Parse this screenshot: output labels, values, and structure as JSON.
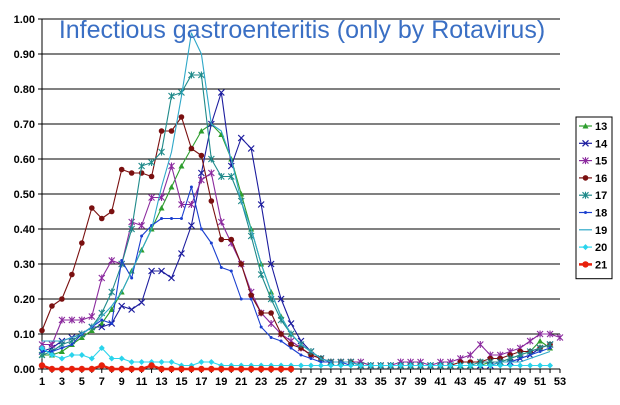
{
  "chart_data": {
    "type": "line",
    "title": "Infectious gastroenteritis (only by Rotavirus)",
    "xlabel": "",
    "ylabel": "",
    "xlim": [
      1,
      53
    ],
    "ylim": [
      0,
      1
    ],
    "x_ticks": [
      1,
      3,
      5,
      7,
      9,
      11,
      13,
      15,
      17,
      19,
      21,
      23,
      25,
      27,
      29,
      31,
      33,
      35,
      37,
      39,
      41,
      43,
      45,
      47,
      49,
      51,
      53
    ],
    "y_ticks": [
      "0.00",
      "0.10",
      "0.20",
      "0.30",
      "0.40",
      "0.50",
      "0.60",
      "0.70",
      "0.80",
      "0.90",
      "1.00"
    ],
    "grid": "horizontal",
    "legend_position": "right",
    "x": [
      1,
      2,
      3,
      4,
      5,
      6,
      7,
      8,
      9,
      10,
      11,
      12,
      13,
      14,
      15,
      16,
      17,
      18,
      19,
      20,
      21,
      22,
      23,
      24,
      25,
      26,
      27,
      28,
      29,
      30,
      31,
      32,
      33,
      34,
      35,
      36,
      37,
      38,
      39,
      40,
      41,
      42,
      43,
      44,
      45,
      46,
      47,
      48,
      49,
      50,
      51,
      52,
      53
    ],
    "series": [
      {
        "name": "13",
        "color": "#2e9e2e",
        "marker": "triangle",
        "values": [
          0.04,
          0.04,
          0.05,
          0.07,
          0.09,
          0.11,
          0.13,
          0.17,
          0.22,
          0.28,
          0.34,
          0.4,
          0.46,
          0.52,
          0.58,
          0.63,
          0.68,
          0.7,
          0.67,
          0.6,
          0.5,
          0.4,
          0.3,
          0.22,
          0.15,
          0.1,
          0.07,
          0.05,
          0.03,
          0.02,
          0.02,
          0.02,
          0.02,
          0.01,
          0.01,
          0.01,
          0.01,
          0.01,
          0.01,
          0.01,
          0.01,
          0.01,
          0.01,
          0.01,
          0.01,
          0.02,
          0.02,
          0.03,
          0.04,
          0.05,
          0.08,
          0.06,
          null
        ]
      },
      {
        "name": "14",
        "color": "#1c1c9e",
        "marker": "x",
        "values": [
          0.05,
          0.06,
          0.08,
          0.09,
          0.1,
          0.12,
          0.12,
          0.13,
          0.18,
          0.17,
          0.19,
          0.28,
          0.28,
          0.26,
          0.33,
          0.41,
          0.56,
          0.7,
          0.79,
          0.58,
          0.66,
          0.63,
          0.47,
          0.3,
          0.2,
          0.13,
          0.08,
          0.05,
          0.03,
          0.02,
          0.02,
          0.02,
          0.01,
          0.01,
          0.01,
          0.01,
          0.01,
          0.01,
          0.01,
          0.01,
          0.01,
          0.01,
          0.01,
          0.01,
          0.01,
          0.01,
          0.02,
          0.02,
          0.03,
          0.04,
          0.06,
          0.07,
          null
        ]
      },
      {
        "name": "15",
        "color": "#8b2a9e",
        "marker": "star",
        "values": [
          0.07,
          0.07,
          0.14,
          0.14,
          0.14,
          0.15,
          0.26,
          0.31,
          0.3,
          0.42,
          0.41,
          0.49,
          0.49,
          0.58,
          0.47,
          0.47,
          0.54,
          0.56,
          0.42,
          0.36,
          0.3,
          0.22,
          0.16,
          0.13,
          0.1,
          0.08,
          0.06,
          0.04,
          0.03,
          0.02,
          0.02,
          0.02,
          0.02,
          0.01,
          0.01,
          0.01,
          0.02,
          0.02,
          0.02,
          0.01,
          0.02,
          0.02,
          0.03,
          0.04,
          0.07,
          0.04,
          0.04,
          0.05,
          0.06,
          0.08,
          0.1,
          0.1,
          0.09
        ]
      },
      {
        "name": "16",
        "color": "#7a1010",
        "marker": "circle",
        "values": [
          0.11,
          0.18,
          0.2,
          0.27,
          0.36,
          0.46,
          0.43,
          0.45,
          0.57,
          0.56,
          0.56,
          0.55,
          0.68,
          0.68,
          0.72,
          0.63,
          0.61,
          0.48,
          0.37,
          0.37,
          0.3,
          0.21,
          0.16,
          0.16,
          0.1,
          0.07,
          0.06,
          0.04,
          0.03,
          0.02,
          0.02,
          0.02,
          0.01,
          0.01,
          0.01,
          0.01,
          0.01,
          0.01,
          0.01,
          0.01,
          0.01,
          0.01,
          0.02,
          0.02,
          0.02,
          0.03,
          0.03,
          0.04,
          0.05,
          0.05,
          0.06,
          0.07,
          null
        ]
      },
      {
        "name": "17",
        "color": "#1f8a8a",
        "marker": "star",
        "values": [
          0.04,
          0.05,
          0.07,
          0.08,
          0.1,
          0.12,
          0.16,
          0.22,
          0.3,
          0.4,
          0.58,
          0.59,
          0.62,
          0.78,
          0.79,
          0.84,
          0.84,
          0.6,
          0.55,
          0.55,
          0.48,
          0.38,
          0.27,
          0.2,
          0.14,
          0.1,
          0.07,
          0.05,
          0.03,
          0.02,
          0.02,
          0.02,
          0.01,
          0.01,
          0.01,
          0.01,
          0.01,
          0.01,
          0.01,
          0.01,
          0.01,
          0.01,
          0.01,
          0.01,
          0.02,
          0.02,
          0.02,
          0.03,
          0.04,
          0.05,
          0.06,
          0.07,
          null
        ]
      },
      {
        "name": "18",
        "color": "#1a3fcf",
        "marker": "dot",
        "values": [
          0.05,
          0.05,
          0.06,
          0.07,
          0.1,
          0.12,
          0.14,
          0.13,
          0.31,
          0.26,
          0.38,
          0.41,
          0.43,
          0.43,
          0.43,
          0.52,
          0.4,
          0.36,
          0.29,
          0.28,
          0.2,
          0.2,
          0.12,
          0.09,
          0.08,
          0.06,
          0.04,
          0.03,
          0.02,
          0.02,
          0.02,
          0.01,
          0.01,
          0.01,
          0.01,
          0.01,
          0.01,
          0.01,
          0.01,
          0.01,
          0.01,
          0.01,
          0.01,
          0.01,
          0.01,
          0.01,
          0.02,
          0.02,
          0.03,
          0.04,
          0.05,
          0.06,
          null
        ]
      },
      {
        "name": "19",
        "color": "#2fa8c8",
        "marker": "none",
        "values": [
          0.08,
          0.08,
          0.08,
          0.09,
          0.1,
          0.12,
          0.15,
          0.18,
          0.22,
          0.28,
          0.34,
          0.4,
          0.52,
          0.62,
          0.78,
          0.96,
          0.9,
          0.7,
          0.68,
          0.6,
          0.48,
          0.4,
          0.3,
          0.22,
          0.15,
          0.1,
          0.07,
          0.05,
          0.03,
          0.02,
          0.02,
          0.02,
          0.01,
          0.01,
          0.01,
          0.01,
          0.01,
          0.01,
          0.01,
          0.01,
          0.01,
          0.01,
          0.01,
          0.01,
          0.01,
          0.01,
          0.02,
          0.02,
          0.02,
          0.03,
          0.04,
          0.05,
          null
        ]
      },
      {
        "name": "20",
        "color": "#2ad4ec",
        "marker": "diamond",
        "values": [
          0.06,
          0.04,
          0.03,
          0.04,
          0.04,
          0.03,
          0.06,
          0.03,
          0.03,
          0.02,
          0.02,
          0.02,
          0.02,
          0.02,
          0.01,
          0.01,
          0.02,
          0.02,
          0.01,
          0.01,
          0.01,
          0.01,
          0.01,
          0.01,
          0.01,
          0.01,
          0.01,
          0.01,
          0.01,
          0.01,
          0.01,
          0.01,
          0.01,
          0.01,
          0.01,
          0.01,
          0.01,
          0.01,
          0.01,
          0.01,
          0.01,
          0.01,
          0.01,
          0.01,
          0.01,
          0.01,
          0.01,
          0.01,
          0.01,
          0.01,
          0.01,
          0.01,
          null
        ]
      },
      {
        "name": "21",
        "color": "#e8200c",
        "marker": "bigcircle",
        "values": [
          0.01,
          0.0,
          0.0,
          0.0,
          0.0,
          0.0,
          0.01,
          0.0,
          0.0,
          0.0,
          0.0,
          0.01,
          0.0,
          0.0,
          0.0,
          0.0,
          0.0,
          0.0,
          0.0,
          0.0,
          0.0,
          0.0,
          0.0,
          0.0,
          0.0,
          0.0,
          null,
          null,
          null,
          null,
          null,
          null,
          null,
          null,
          null,
          null,
          null,
          null,
          null,
          null,
          null,
          null,
          null,
          null,
          null,
          null,
          null,
          null,
          null,
          null,
          null,
          null,
          null
        ]
      }
    ]
  }
}
